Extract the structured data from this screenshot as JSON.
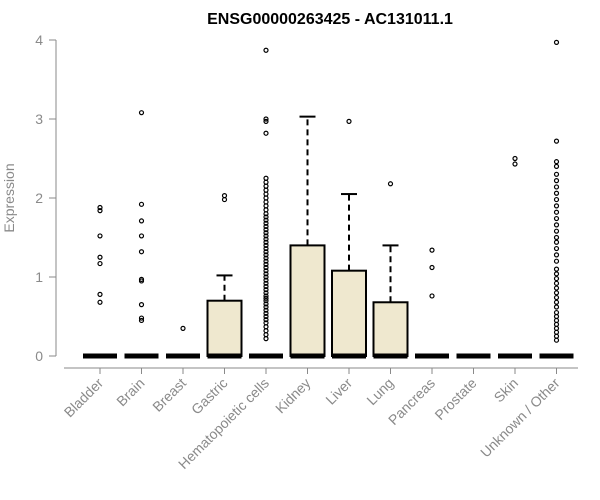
{
  "chart_data": {
    "type": "box",
    "title": "ENSG00000263425 - AC131011.1",
    "xlabel": "",
    "ylabel": "Expression",
    "ylim": [
      0,
      4
    ],
    "yticks": [
      0,
      1,
      2,
      3,
      4
    ],
    "grid": false,
    "colors": {
      "box_fill": "#efe8cf",
      "box_stroke": "#000000",
      "axis": "#8a8a8a",
      "text": "#8a8a8a",
      "title": "#000000"
    },
    "categories": [
      "Bladder",
      "Brain",
      "Breast",
      "Gastric",
      "Hematopoietic cells",
      "Kidney",
      "Liver",
      "Lung",
      "Pancreas",
      "Prostate",
      "Skin",
      "Unknown / Other"
    ],
    "boxes": [
      {
        "category": "Bladder",
        "q1": 0,
        "median": 0,
        "q3": 0,
        "whisker_low": 0,
        "whisker_high": 0,
        "outliers": [
          0.68,
          0.78,
          1.17,
          1.25,
          1.52,
          1.84,
          1.88
        ]
      },
      {
        "category": "Brain",
        "q1": 0,
        "median": 0,
        "q3": 0,
        "whisker_low": 0,
        "whisker_high": 0,
        "outliers": [
          0.45,
          0.48,
          0.65,
          0.95,
          0.97,
          1.32,
          1.52,
          1.71,
          1.92,
          3.08
        ]
      },
      {
        "category": "Breast",
        "q1": 0,
        "median": 0,
        "q3": 0,
        "whisker_low": 0,
        "whisker_high": 0,
        "outliers": [
          0.35
        ]
      },
      {
        "category": "Gastric",
        "q1": 0,
        "median": 0,
        "q3": 0.7,
        "whisker_low": 0,
        "whisker_high": 1.02,
        "outliers": [
          1.98,
          2.03
        ]
      },
      {
        "category": "Hematopoietic cells",
        "q1": 0,
        "median": 0,
        "q3": 0,
        "whisker_low": 0,
        "whisker_high": 0,
        "outliers": [
          0.22,
          0.27,
          0.32,
          0.37,
          0.42,
          0.46,
          0.5,
          0.54,
          0.58,
          0.62,
          0.66,
          0.7,
          0.73,
          0.76,
          0.8,
          0.84,
          0.88,
          0.92,
          0.96,
          1.0,
          1.04,
          1.08,
          1.12,
          1.16,
          1.2,
          1.24,
          1.28,
          1.32,
          1.36,
          1.4,
          1.44,
          1.48,
          1.52,
          1.56,
          1.6,
          1.64,
          1.68,
          1.72,
          1.76,
          1.8,
          1.85,
          1.9,
          1.95,
          2.0,
          2.05,
          2.1,
          2.15,
          2.2,
          2.25,
          2.82,
          2.97,
          3.0,
          3.87
        ]
      },
      {
        "category": "Kidney",
        "q1": 0,
        "median": 0,
        "q3": 1.4,
        "whisker_low": 0,
        "whisker_high": 3.03,
        "outliers": []
      },
      {
        "category": "Liver",
        "q1": 0,
        "median": 0,
        "q3": 1.08,
        "whisker_low": 0,
        "whisker_high": 2.05,
        "outliers": [
          2.97
        ]
      },
      {
        "category": "Lung",
        "q1": 0,
        "median": 0,
        "q3": 0.68,
        "whisker_low": 0,
        "whisker_high": 1.4,
        "outliers": [
          2.18
        ]
      },
      {
        "category": "Pancreas",
        "q1": 0,
        "median": 0,
        "q3": 0,
        "whisker_low": 0,
        "whisker_high": 0,
        "outliers": [
          0.76,
          1.12,
          1.34
        ]
      },
      {
        "category": "Prostate",
        "q1": 0,
        "median": 0,
        "q3": 0,
        "whisker_low": 0,
        "whisker_high": 0,
        "outliers": []
      },
      {
        "category": "Skin",
        "q1": 0,
        "median": 0,
        "q3": 0,
        "whisker_low": 0,
        "whisker_high": 0,
        "outliers": [
          2.43,
          2.5
        ]
      },
      {
        "category": "Unknown / Other",
        "q1": 0,
        "median": 0,
        "q3": 0,
        "whisker_low": 0,
        "whisker_high": 0,
        "outliers": [
          0.2,
          0.25,
          0.3,
          0.35,
          0.4,
          0.45,
          0.5,
          0.55,
          0.62,
          0.68,
          0.74,
          0.8,
          0.86,
          0.92,
          0.98,
          1.04,
          1.1,
          1.2,
          1.28,
          1.36,
          1.44,
          1.5,
          1.58,
          1.66,
          1.74,
          1.82,
          1.9,
          1.98,
          2.06,
          2.14,
          2.22,
          2.3,
          2.4,
          2.46,
          2.72,
          3.97
        ]
      }
    ]
  }
}
